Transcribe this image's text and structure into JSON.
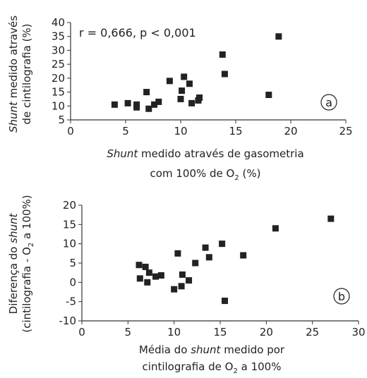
{
  "chart_data": [
    {
      "type": "scatter",
      "panel": "a",
      "annotation": "r = 0,666, p < 0,001",
      "xlabel": {
        "italic": "Shunt",
        "rest": " medido através de gasometria",
        "line2_pre": "com 100% de O",
        "line2_sub": "2",
        "line2_post": " (%)"
      },
      "ylabel": {
        "italic": "Shunt",
        "rest": " medido através",
        "line2": "de cintilografia  (%)"
      },
      "xlim": [
        0,
        25
      ],
      "ylim": [
        5,
        40
      ],
      "xticks": [
        0,
        5,
        10,
        15,
        20,
        25
      ],
      "yticks": [
        5,
        10,
        15,
        20,
        25,
        30,
        35,
        40
      ],
      "grid": false,
      "points": [
        {
          "x": 4,
          "y": 10.5
        },
        {
          "x": 5.2,
          "y": 11
        },
        {
          "x": 6,
          "y": 9.5
        },
        {
          "x": 6,
          "y": 10.5
        },
        {
          "x": 6.9,
          "y": 15
        },
        {
          "x": 7.1,
          "y": 9
        },
        {
          "x": 7.6,
          "y": 10.5
        },
        {
          "x": 8,
          "y": 11.5
        },
        {
          "x": 9,
          "y": 19
        },
        {
          "x": 10,
          "y": 12.5
        },
        {
          "x": 10.1,
          "y": 15.5
        },
        {
          "x": 10.3,
          "y": 20.5
        },
        {
          "x": 10.8,
          "y": 18
        },
        {
          "x": 11,
          "y": 11
        },
        {
          "x": 11.6,
          "y": 12
        },
        {
          "x": 11.7,
          "y": 13
        },
        {
          "x": 13.8,
          "y": 28.5
        },
        {
          "x": 14,
          "y": 21.5
        },
        {
          "x": 18,
          "y": 14
        },
        {
          "x": 18.9,
          "y": 35
        }
      ]
    },
    {
      "type": "scatter",
      "panel": "b",
      "xlabel": {
        "line1_pre": "Média do ",
        "line1_italic": "shunt",
        "line1_post": "  medido por",
        "line2_pre": "cintilografia de O",
        "line2_sub": "2",
        "line2_post": " a 100%"
      },
      "ylabel": {
        "line1_pre": "Diferença do ",
        "line1_italic": "shunt",
        "line2_pre": "(cintilografia - O",
        "line2_sub": "2",
        "line2_post": " a 100%)"
      },
      "xlim": [
        0,
        30
      ],
      "ylim": [
        -10,
        20
      ],
      "xticks": [
        0,
        5,
        10,
        15,
        20,
        25,
        30
      ],
      "yticks": [
        -10,
        -5,
        0,
        5,
        10,
        15,
        20
      ],
      "grid": false,
      "points": [
        {
          "x": 6.2,
          "y": 4.5
        },
        {
          "x": 6.3,
          "y": 1
        },
        {
          "x": 6.9,
          "y": 4
        },
        {
          "x": 7.1,
          "y": 0
        },
        {
          "x": 7.3,
          "y": 2.5
        },
        {
          "x": 8,
          "y": 1.5
        },
        {
          "x": 8.6,
          "y": 1.8
        },
        {
          "x": 10,
          "y": -1.8
        },
        {
          "x": 10.4,
          "y": 7.5
        },
        {
          "x": 10.8,
          "y": -1
        },
        {
          "x": 10.9,
          "y": 2
        },
        {
          "x": 11.6,
          "y": 0.5
        },
        {
          "x": 12.3,
          "y": 5
        },
        {
          "x": 13.4,
          "y": 9
        },
        {
          "x": 13.8,
          "y": 6.5
        },
        {
          "x": 15.2,
          "y": 10
        },
        {
          "x": 15.5,
          "y": -4.8
        },
        {
          "x": 17.5,
          "y": 7
        },
        {
          "x": 21,
          "y": 14
        },
        {
          "x": 27,
          "y": 16.5
        }
      ]
    }
  ]
}
